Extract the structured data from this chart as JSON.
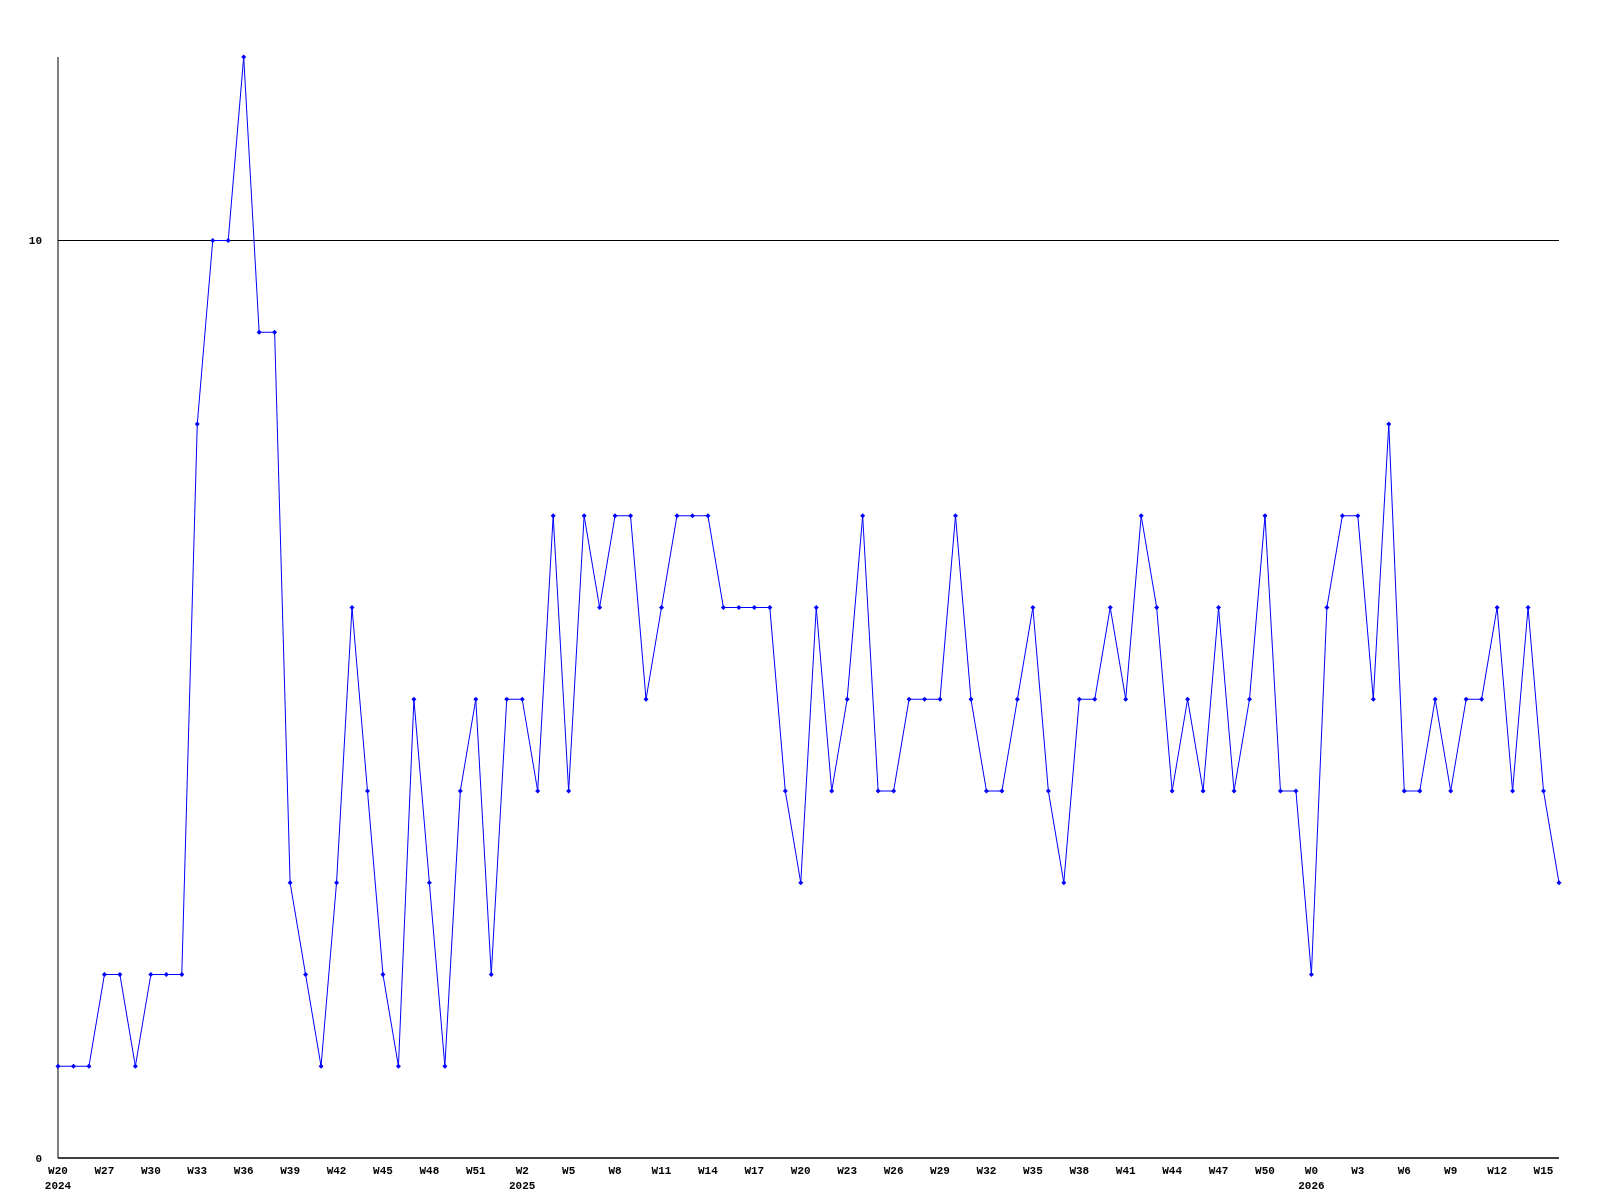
{
  "chart_data": {
    "type": "line",
    "categories": [
      "W20\n2024",
      null,
      null,
      "W27",
      null,
      null,
      "W30",
      null,
      null,
      "W33",
      null,
      null,
      "W36",
      null,
      null,
      "W39",
      null,
      null,
      "W42",
      null,
      null,
      "W45",
      null,
      null,
      "W48",
      null,
      null,
      "W51",
      null,
      null,
      "W2\n2025",
      null,
      null,
      "W5",
      null,
      null,
      "W8",
      null,
      null,
      "W11",
      null,
      null,
      "W14",
      null,
      null,
      "W17",
      null,
      null,
      "W20",
      null,
      null,
      "W23",
      null,
      null,
      "W26",
      null,
      null,
      "W29",
      null,
      null,
      "W32",
      null,
      null,
      "W35",
      null,
      null,
      "W38",
      null,
      null,
      "W41",
      null,
      null,
      "W44",
      null,
      null,
      "W47",
      null,
      null,
      "W50",
      null,
      null,
      "W0\n2026",
      null,
      null,
      "W3",
      null,
      null,
      "W6",
      null,
      null,
      "W9",
      null,
      null,
      "W12",
      null,
      null,
      "W15",
      null
    ],
    "series": [
      {
        "color": "#0000ff",
        "values": [
          1,
          1,
          1,
          2,
          2,
          1,
          2,
          2,
          2,
          8,
          10,
          10,
          12,
          9,
          9,
          3,
          2,
          1,
          3,
          6,
          4,
          2,
          1,
          5,
          3,
          1,
          4,
          5,
          2,
          5,
          5,
          4,
          7,
          4,
          7,
          6,
          7,
          7,
          5,
          6,
          7,
          7,
          7,
          6,
          6,
          6,
          6,
          4,
          3,
          6,
          4,
          5,
          7,
          4,
          4,
          5,
          5,
          5,
          7,
          5,
          4,
          4,
          5,
          6,
          4,
          3,
          5,
          5,
          6,
          5,
          7,
          6,
          4,
          5,
          4,
          6,
          4,
          5,
          7,
          4,
          4,
          2,
          6,
          7,
          7,
          5,
          8,
          4,
          4,
          5,
          4,
          5,
          5,
          6,
          4,
          6,
          4,
          3
        ]
      }
    ],
    "ylim": [
      0,
      12
    ],
    "yticks": [
      0,
      10
    ],
    "grid": "y",
    "marker": "diamond",
    "line_style": "solid"
  }
}
